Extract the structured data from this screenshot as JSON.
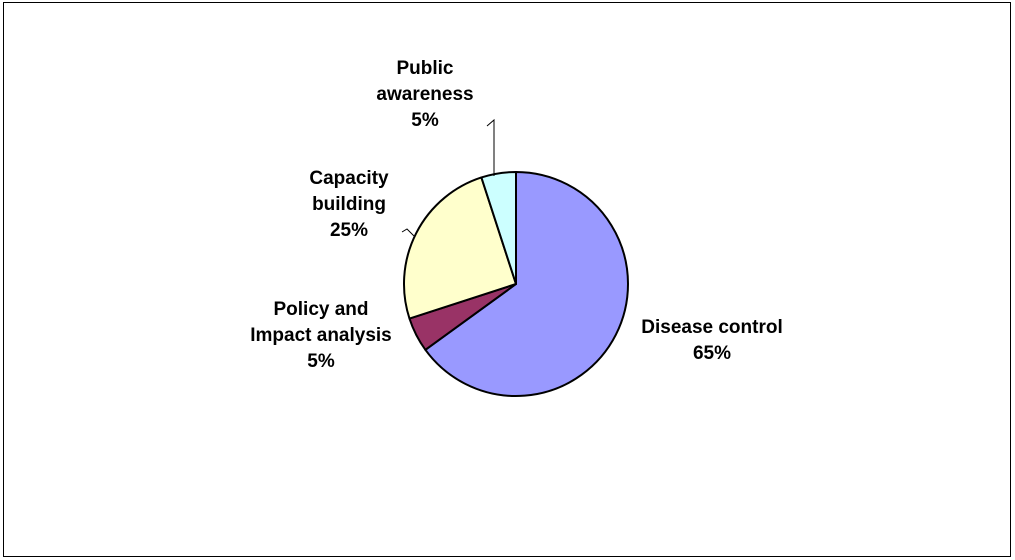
{
  "chart_data": {
    "type": "pie",
    "title": "",
    "slices": [
      {
        "label": [
          "Disease control"
        ],
        "percent_label": "65%",
        "value": 65,
        "color": "#9999ff"
      },
      {
        "label": [
          "Policy and",
          "Impact analysis"
        ],
        "percent_label": "5%",
        "value": 5,
        "color": "#993366"
      },
      {
        "label": [
          "Capacity",
          "building"
        ],
        "percent_label": "25%",
        "value": 25,
        "color": "#ffffcc"
      },
      {
        "label": [
          "Public",
          "awareness"
        ],
        "percent_label": "5%",
        "value": 5,
        "color": "#ccffff"
      }
    ],
    "start_angle": "12 o'clock",
    "direction": "clockwise",
    "legend": "none",
    "outline_color": "#000000"
  }
}
